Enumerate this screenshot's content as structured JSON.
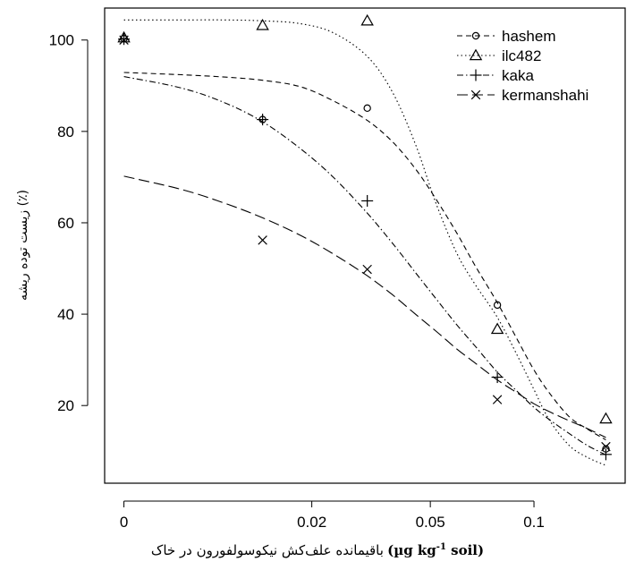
{
  "chart_data": {
    "type": "scatter",
    "title": "",
    "xlabel": "باقیمانده علف‌کش نیکوسولفورون در خاک",
    "xlabel_unit": {
      "open": "(",
      "main": "µg kg",
      "sup": "-1",
      "rest": " soil",
      "close": ")"
    },
    "ylabel": "زیست توده ریشه (٪)",
    "x_scale": "log1p",
    "x_tick_values": [
      0,
      0.02,
      0.05,
      0.1
    ],
    "x_tick_labels": [
      "0",
      "0.02",
      "0.05",
      "0.1"
    ],
    "y_ticks": [
      20,
      40,
      60,
      80,
      100
    ],
    "ylim": [
      3,
      107
    ],
    "grid": false,
    "legend_position": "top-right",
    "series": [
      {
        "name": "hashem",
        "marker": "circle",
        "line_style": "dashed",
        "x": [
          0,
          0.0125,
          0.0315,
          0.0788,
          0.1575
        ],
        "y": [
          100.3,
          82.6,
          85.1,
          42.0,
          10.5
        ],
        "fit_x": [
          0,
          0.004,
          0.008,
          0.0125,
          0.018,
          0.024,
          0.0315,
          0.038,
          0.045,
          0.052,
          0.06,
          0.068,
          0.0788,
          0.09,
          0.1,
          0.11,
          0.125,
          0.14,
          0.1575
        ],
        "fit_y": [
          92.9,
          92.4,
          91.9,
          91.2,
          89.8,
          86.7,
          82.4,
          77.8,
          71.8,
          65.2,
          57.8,
          50.6,
          42.5,
          34.3,
          27.8,
          22.9,
          17.6,
          14.9,
          12.5
        ]
      },
      {
        "name": "ilc482",
        "marker": "triangle",
        "line_style": "dotted",
        "x": [
          0,
          0.0125,
          0.0315,
          0.0788,
          0.1575
        ],
        "y": [
          100.5,
          103.2,
          104.2,
          36.7,
          17.1
        ],
        "fit_x": [
          0,
          0.004,
          0.008,
          0.0125,
          0.018,
          0.024,
          0.0315,
          0.038,
          0.045,
          0.052,
          0.06,
          0.068,
          0.0788,
          0.09,
          0.1,
          0.11,
          0.125,
          0.14,
          0.1575
        ],
        "fit_y": [
          104.4,
          104.4,
          104.4,
          104.2,
          103.6,
          101.6,
          96.4,
          88.7,
          77.2,
          64.3,
          53.4,
          46.5,
          39.3,
          30.8,
          23.5,
          17.0,
          11.3,
          8.7,
          6.9
        ]
      },
      {
        "name": "kaka",
        "marker": "plus",
        "line_style": "dashdot",
        "x": [
          0,
          0.0125,
          0.0315,
          0.0788,
          0.1575
        ],
        "y": [
          100.2,
          82.6,
          64.8,
          26.2,
          9.3
        ],
        "fit_x": [
          0,
          0.004,
          0.008,
          0.0125,
          0.018,
          0.024,
          0.0315,
          0.038,
          0.045,
          0.052,
          0.06,
          0.068,
          0.0788,
          0.09,
          0.1,
          0.11,
          0.125,
          0.14,
          0.1575
        ],
        "fit_y": [
          92.0,
          89.5,
          86.3,
          82.1,
          76.3,
          70.0,
          62.1,
          55.6,
          49.1,
          43.4,
          37.7,
          33.0,
          27.3,
          23.0,
          19.6,
          17.0,
          13.9,
          11.3,
          9.2
        ]
      },
      {
        "name": "kermanshahi",
        "marker": "x",
        "line_style": "longdash",
        "x": [
          0,
          0.0125,
          0.0315,
          0.0788,
          0.1575
        ],
        "y": [
          100.0,
          56.2,
          49.8,
          21.3,
          11.0
        ],
        "fit_x": [
          0,
          0.004,
          0.008,
          0.0125,
          0.018,
          0.024,
          0.0315,
          0.038,
          0.045,
          0.052,
          0.06,
          0.068,
          0.0788,
          0.09,
          0.1,
          0.11,
          0.125,
          0.14,
          0.1575
        ],
        "fit_y": [
          70.2,
          67.3,
          64.3,
          61.1,
          57.3,
          53.2,
          48.4,
          44.3,
          40.0,
          36.3,
          32.4,
          29.3,
          25.6,
          22.7,
          20.4,
          18.7,
          16.7,
          15.0,
          13.0
        ]
      }
    ]
  }
}
